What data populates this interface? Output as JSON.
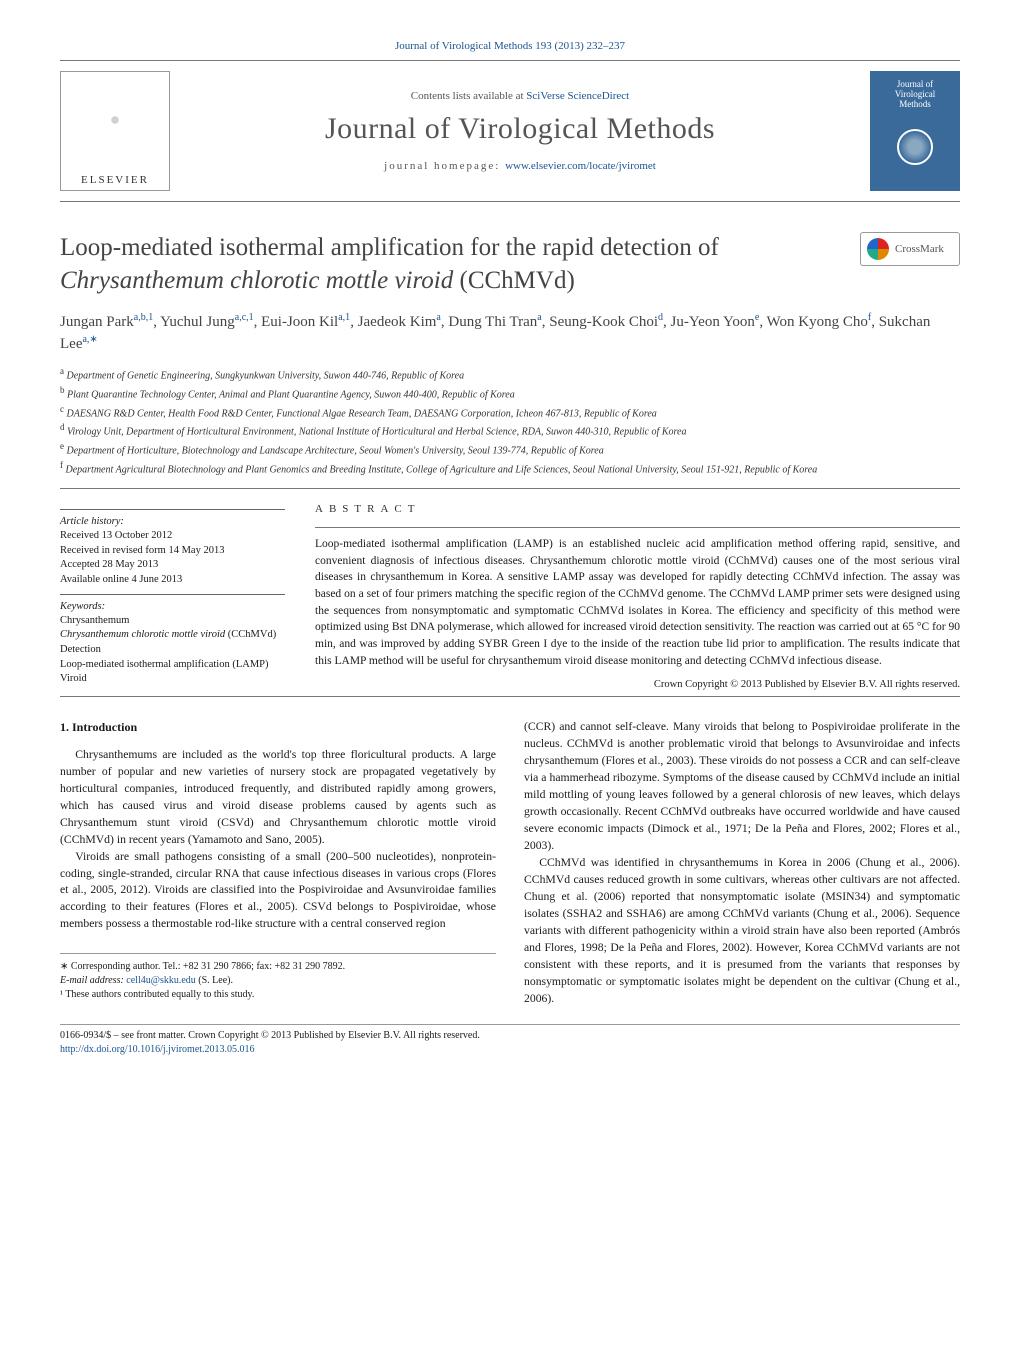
{
  "colors": {
    "link": "#1a5490",
    "text": "#1a1a1a",
    "title_gray": "#555555",
    "journal_cover_bg": "#3a6a9a",
    "border": "#999999"
  },
  "journal_link": "Journal of Virological Methods 193 (2013) 232–237",
  "elsevier": "ELSEVIER",
  "contents_prefix": "Contents lists available at ",
  "contents_link": "SciVerse ScienceDirect",
  "journal_title": "Journal of Virological Methods",
  "homepage_prefix": "journal homepage: ",
  "homepage_link": "www.elsevier.com/locate/jviromet",
  "journal_cover": {
    "l1": "Journal of",
    "l2": "Virological",
    "l3": "Methods"
  },
  "article_title_plain1": "Loop-mediated isothermal amplification for the rapid detection of ",
  "article_title_italic": "Chrysanthemum chlorotic mottle viroid",
  "article_title_plain2": " (CChMVd)",
  "crossmark": "CrossMark",
  "authors": [
    {
      "name": "Jungan Park",
      "sup": "a,b,1"
    },
    {
      "name": "Yuchul Jung",
      "sup": "a,c,1"
    },
    {
      "name": "Eui-Joon Kil",
      "sup": "a,1"
    },
    {
      "name": "Jaedeok Kim",
      "sup": "a"
    },
    {
      "name": "Dung Thi Tran",
      "sup": "a"
    },
    {
      "name": "Seung-Kook Choi",
      "sup": "d"
    },
    {
      "name": "Ju-Yeon Yoon",
      "sup": "e"
    },
    {
      "name": "Won Kyong Cho",
      "sup": "f"
    },
    {
      "name": "Sukchan Lee",
      "sup": "a,∗"
    }
  ],
  "affiliations": [
    {
      "sup": "a",
      "text": "Department of Genetic Engineering, Sungkyunkwan University, Suwon 440-746, Republic of Korea"
    },
    {
      "sup": "b",
      "text": "Plant Quarantine Technology Center, Animal and Plant Quarantine Agency, Suwon 440-400, Republic of Korea"
    },
    {
      "sup": "c",
      "text": "DAESANG R&D Center, Health Food R&D Center, Functional Algae Research Team, DAESANG Corporation, Icheon 467-813, Republic of Korea"
    },
    {
      "sup": "d",
      "text": "Virology Unit, Department of Horticultural Environment, National Institute of Horticultural and Herbal Science, RDA, Suwon 440-310, Republic of Korea"
    },
    {
      "sup": "e",
      "text": "Department of Horticulture, Biotechnology and Landscape Architecture, Seoul Women's University, Seoul 139-774, Republic of Korea"
    },
    {
      "sup": "f",
      "text": "Department Agricultural Biotechnology and Plant Genomics and Breeding Institute, College of Agriculture and Life Sciences, Seoul National University, Seoul 151-921, Republic of Korea"
    }
  ],
  "history_head": "Article history:",
  "history": [
    "Received 13 October 2012",
    "Received in revised form 14 May 2013",
    "Accepted 28 May 2013",
    "Available online 4 June 2013"
  ],
  "keywords_head": "Keywords:",
  "keywords": [
    "Chrysanthemum",
    "Chrysanthemum chlorotic mottle viroid (CChMVd)",
    "Detection",
    "Loop-mediated isothermal amplification (LAMP)",
    "Viroid"
  ],
  "abstract_head": "ABSTRACT",
  "abstract_body": "Loop-mediated isothermal amplification (LAMP) is an established nucleic acid amplification method offering rapid, sensitive, and convenient diagnosis of infectious diseases. Chrysanthemum chlorotic mottle viroid (CChMVd) causes one of the most serious viral diseases in chrysanthemum in Korea. A sensitive LAMP assay was developed for rapidly detecting CChMVd infection. The assay was based on a set of four primers matching the specific region of the CChMVd genome. The CChMVd LAMP primer sets were designed using the sequences from nonsymptomatic and symptomatic CChMVd isolates in Korea. The efficiency and specificity of this method were optimized using Bst DNA polymerase, which allowed for increased viroid detection sensitivity. The reaction was carried out at 65 °C for 90 min, and was improved by adding SYBR Green I dye to the inside of the reaction tube lid prior to amplification. The results indicate that this LAMP method will be useful for chrysanthemum viroid disease monitoring and detecting CChMVd infectious disease.",
  "abstract_copyright": "Crown Copyright © 2013 Published by Elsevier B.V. All rights reserved.",
  "section_head": "1. Introduction",
  "col1_p1": "Chrysanthemums are included as the world's top three floricultural products. A large number of popular and new varieties of nursery stock are propagated vegetatively by horticultural companies, introduced frequently, and distributed rapidly among growers, which has caused virus and viroid disease problems caused by agents such as Chrysanthemum stunt viroid (CSVd) and Chrysanthemum chlorotic mottle viroid (CChMVd) in recent years (Yamamoto and Sano, 2005).",
  "col1_p2": "Viroids are small pathogens consisting of a small (200–500 nucleotides), nonprotein-coding, single-stranded, circular RNA that cause infectious diseases in various crops (Flores et al., 2005, 2012). Viroids are classified into the Pospiviroidae and Avsunviroidae families according to their features (Flores et al., 2005). CSVd belongs to Pospiviroidae, whose members possess a thermostable rod-like structure with a central conserved region",
  "col2_p1": "(CCR) and cannot self-cleave. Many viroids that belong to Pospiviroidae proliferate in the nucleus. CChMVd is another problematic viroid that belongs to Avsunviroidae and infects chrysanthemum (Flores et al., 2003). These viroids do not possess a CCR and can self-cleave via a hammerhead ribozyme. Symptoms of the disease caused by CChMVd include an initial mild mottling of young leaves followed by a general chlorosis of new leaves, which delays growth occasionally. Recent CChMVd outbreaks have occurred worldwide and have caused severe economic impacts (Dimock et al., 1971; De la Peña and Flores, 2002; Flores et al., 2003).",
  "col2_p2": "CChMVd was identified in chrysanthemums in Korea in 2006 (Chung et al., 2006). CChMVd causes reduced growth in some cultivars, whereas other cultivars are not affected. Chung et al. (2006) reported that nonsymptomatic isolate (MSIN34) and symptomatic isolates (SSHA2 and SSHA6) are among CChMVd variants (Chung et al., 2006). Sequence variants with different pathogenicity within a viroid strain have also been reported (Ambrós and Flores, 1998; De la Peña and Flores, 2002). However, Korea CChMVd variants are not consistent with these reports, and it is presumed from the variants that responses by nonsymptomatic or symptomatic isolates might be dependent on the cultivar (Chung et al., 2006).",
  "footnotes": {
    "corr": "∗ Corresponding author. Tel.: +82 31 290 7866; fax: +82 31 290 7892.",
    "email_label": "E-mail address: ",
    "email": "cell4u@skku.edu",
    "email_suffix": " (S. Lee).",
    "equal": "¹ These authors contributed equally to this study."
  },
  "bottom": {
    "copyright": "0166-0934/$ – see front matter. Crown Copyright © 2013 Published by Elsevier B.V. All rights reserved.",
    "doi": "http://dx.doi.org/10.1016/j.jviromet.2013.05.016"
  }
}
